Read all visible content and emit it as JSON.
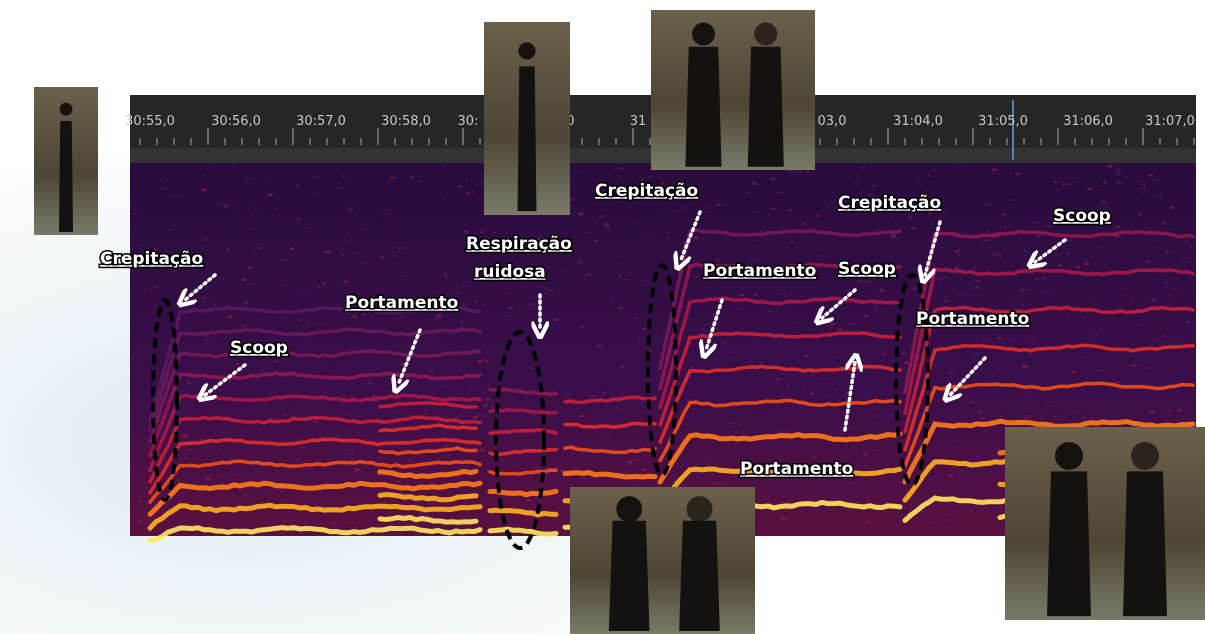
{
  "timeline": {
    "labels": [
      "30:55,0",
      "30:56,0",
      "30:57,0",
      "30:58,0",
      "30:",
      "00,0",
      "31",
      "03,0",
      "31:04,0",
      "31:05,0",
      "31:06,0",
      "31:07,0"
    ]
  },
  "annotations": [
    {
      "lines": [
        "Crepitação"
      ]
    },
    {
      "lines": [
        "Scoop"
      ]
    },
    {
      "lines": [
        "Portamento"
      ]
    },
    {
      "lines": [
        "Respiração",
        "ruidosa"
      ]
    },
    {
      "lines": [
        "Crepitação"
      ]
    },
    {
      "lines": [
        "Portamento"
      ]
    },
    {
      "lines": [
        "Scoop"
      ]
    },
    {
      "lines": [
        "Crepitação"
      ]
    },
    {
      "lines": [
        "Scoop"
      ]
    },
    {
      "lines": [
        "Portamento"
      ]
    },
    {
      "lines": [
        "Portamento"
      ]
    }
  ]
}
